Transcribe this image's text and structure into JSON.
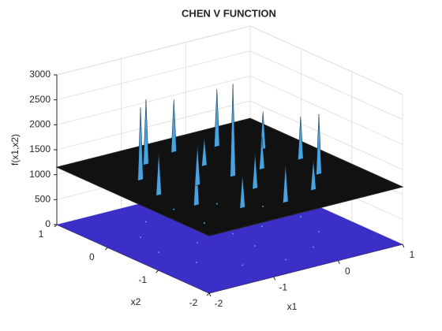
{
  "chart_data": {
    "type": "surface",
    "title": "CHEN V FUNCTION",
    "xlabel": "x1",
    "ylabel": "x2",
    "zlabel": "f(x1,x2)",
    "xlim": [
      -2,
      1
    ],
    "ylim": [
      -2,
      1
    ],
    "zlim": [
      0,
      3000
    ],
    "xticks": [
      -2,
      -1,
      0,
      1
    ],
    "yticks": [
      -2,
      -1,
      0,
      1
    ],
    "zticks": [
      0,
      500,
      1000,
      1500,
      2000,
      2500,
      3000
    ],
    "grid": true,
    "surface_z": 1150,
    "surface_color": "#111111",
    "peak_color": "#4aa3df",
    "contour_color": "#3c2fc8",
    "peaks": {
      "x1": [
        0.6,
        0.45,
        0.05,
        -0.5,
        -1.05,
        -1.45,
        -1.6,
        -1.45,
        -1.05,
        -0.5,
        0.05,
        0.45,
        0,
        -1,
        -0.5,
        -0.5,
        -0.45
      ],
      "x2": [
        -0.5,
        0.05,
        0.45,
        0.6,
        0.45,
        0.05,
        -0.5,
        -1.05,
        -1.45,
        -1.6,
        -1.45,
        -1.05,
        -0.5,
        -0.5,
        0,
        -1,
        -0.5
      ],
      "z": [
        2000,
        1900,
        2300,
        2200,
        2450,
        2600,
        2000,
        2100,
        1800,
        1900,
        1750,
        2350,
        1800,
        1950,
        1700,
        1850,
        3000
      ]
    }
  }
}
